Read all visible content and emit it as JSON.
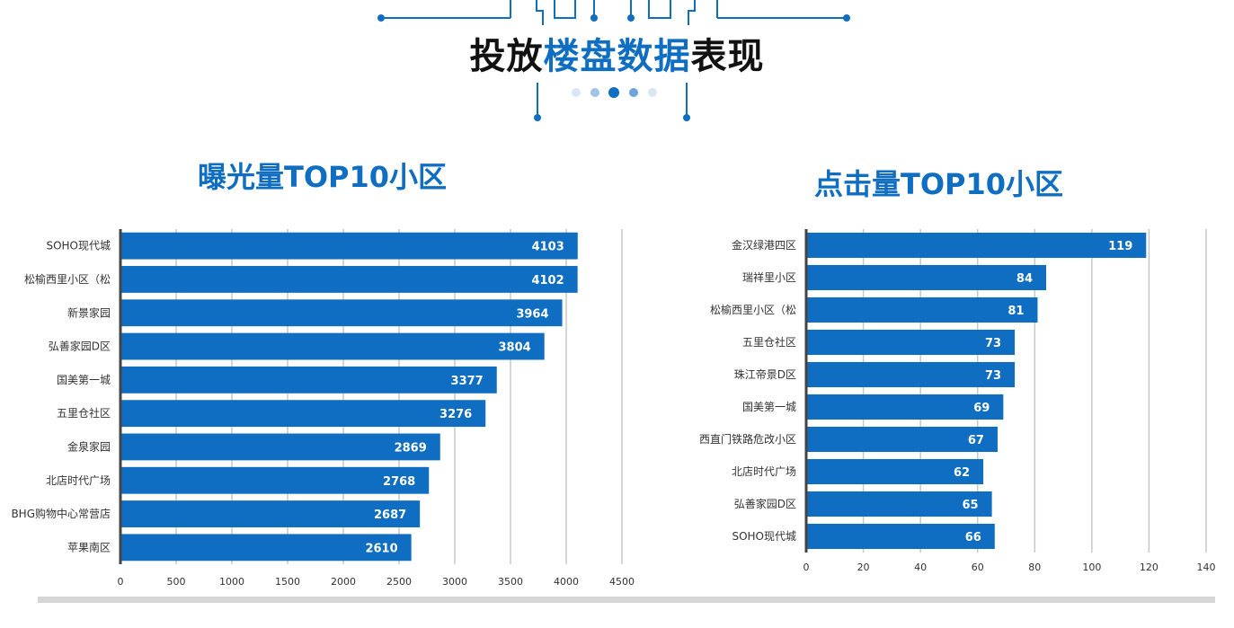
{
  "header": {
    "title_part1": "投放",
    "title_part2": "楼盘数据",
    "title_part3": "表现"
  },
  "colors": {
    "bar": "#0f6ec1",
    "accent": "#0f6ec1",
    "grid": "#c8c8c8",
    "axis": "#444444"
  },
  "chart_data": [
    {
      "type": "bar",
      "orientation": "horizontal",
      "title": "曝光量TOP10小区",
      "categories": [
        "SOHO现代城",
        "松榆西里小区（松",
        "新景家园",
        "弘善家园D区",
        "国美第一城",
        "五里仓社区",
        "金泉家园",
        "北店时代广场",
        "BHG购物中心常营店",
        "苹果南区"
      ],
      "values": [
        4103,
        4102,
        3964,
        3804,
        3377,
        3276,
        2869,
        2768,
        2687,
        2610
      ],
      "xlim": [
        0,
        4500
      ],
      "ticks": [
        0,
        500,
        1000,
        1500,
        2000,
        2500,
        3000,
        3500,
        4000,
        4500
      ],
      "grid": true,
      "data_labels": true
    },
    {
      "type": "bar",
      "orientation": "horizontal",
      "title": "点击量TOP10小区",
      "categories": [
        "金汉绿港四区",
        "瑞祥里小区",
        "松榆西里小区（松",
        "五里仓社区",
        "珠江帝景D区",
        "国美第一城",
        "西直门铁路危改小区",
        "北店时代广场",
        "弘善家园D区",
        "SOHO现代城"
      ],
      "values": [
        119,
        84,
        81,
        73,
        73,
        69,
        67,
        62,
        65,
        66
      ],
      "xlim": [
        0,
        140
      ],
      "ticks": [
        0,
        20,
        40,
        60,
        80,
        100,
        120,
        140
      ],
      "grid": true,
      "data_labels": true
    }
  ]
}
